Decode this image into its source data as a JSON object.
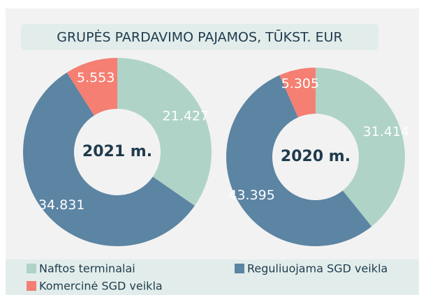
{
  "title": "GRUPĖS PARDAVIMO PAJAMOS, TŪKST. EUR",
  "chart_data": [
    {
      "type": "pie",
      "label": "2021 m.",
      "categories": [
        "Naftos terminalai",
        "Reguliuojama SGD veikla",
        "Komercinė SGD veikla"
      ],
      "values": [
        21.427,
        34.831,
        5.553
      ],
      "colors": [
        "#afd3c7",
        "#5c84a3",
        "#f47f72"
      ]
    },
    {
      "type": "pie",
      "label": "2020 m.",
      "categories": [
        "Naftos terminalai",
        "Reguliuojama SGD veikla",
        "Komercinė SGD veikla"
      ],
      "values": [
        31.414,
        43.395,
        5.305
      ],
      "colors": [
        "#afd3c7",
        "#5c84a3",
        "#f47f72"
      ]
    }
  ]
}
